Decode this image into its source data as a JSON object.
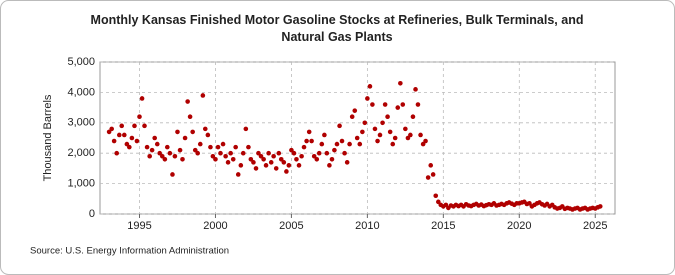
{
  "chart_data": {
    "type": "scatter",
    "title": "Monthly Kansas Finished Motor Gasoline Stocks at Refineries, Bulk Terminals, and Natural Gas Plants",
    "y_label": "Thousand Barrels",
    "source": "Source: U.S. Energy Information Administration",
    "color": "#b00000",
    "grid": true,
    "xlim": [
      1992.4,
      2026.3
    ],
    "xticks": [
      1995,
      2000,
      2005,
      2010,
      2015,
      2020,
      2025
    ],
    "ylim": [
      0,
      5000
    ],
    "yticks": [
      0,
      {
        "value": 1000,
        "label": "1,000"
      },
      {
        "value": 2000,
        "label": "2,000"
      },
      {
        "value": 3000,
        "label": "3,000"
      },
      {
        "value": 4000,
        "label": "4,000"
      },
      {
        "value": 5000,
        "label": "5,000"
      }
    ],
    "x": [
      1993,
      1993.17,
      1993.33,
      1993.5,
      1993.67,
      1993.83,
      1994,
      1994.17,
      1994.33,
      1994.5,
      1994.67,
      1994.83,
      1995,
      1995.17,
      1995.33,
      1995.5,
      1995.67,
      1995.83,
      1996,
      1996.17,
      1996.33,
      1996.5,
      1996.67,
      1996.83,
      1997,
      1997.17,
      1997.33,
      1997.5,
      1997.67,
      1997.83,
      1998,
      1998.17,
      1998.33,
      1998.5,
      1998.67,
      1998.83,
      1999,
      1999.17,
      1999.33,
      1999.5,
      1999.67,
      1999.83,
      2000,
      2000.17,
      2000.33,
      2000.5,
      2000.67,
      2000.83,
      2001,
      2001.17,
      2001.33,
      2001.5,
      2001.67,
      2001.83,
      2002,
      2002.17,
      2002.33,
      2002.5,
      2002.67,
      2002.83,
      2003,
      2003.17,
      2003.33,
      2003.5,
      2003.67,
      2003.83,
      2004,
      2004.17,
      2004.33,
      2004.5,
      2004.67,
      2004.83,
      2005,
      2005.17,
      2005.33,
      2005.5,
      2005.67,
      2005.83,
      2006,
      2006.17,
      2006.33,
      2006.5,
      2006.67,
      2006.83,
      2007,
      2007.17,
      2007.33,
      2007.5,
      2007.67,
      2007.83,
      2008,
      2008.17,
      2008.33,
      2008.5,
      2008.67,
      2008.83,
      2009,
      2009.17,
      2009.33,
      2009.5,
      2009.67,
      2009.83,
      2010,
      2010.17,
      2010.33,
      2010.5,
      2010.67,
      2010.83,
      2011,
      2011.17,
      2011.33,
      2011.5,
      2011.67,
      2011.83,
      2012,
      2012.17,
      2012.33,
      2012.5,
      2012.67,
      2012.83,
      2013,
      2013.17,
      2013.33,
      2013.5,
      2013.67,
      2013.83,
      2014,
      2014.17,
      2014.33,
      2014.5,
      2014.67,
      2014.83,
      2015,
      2015.17,
      2015.33,
      2015.5,
      2015.67,
      2015.83,
      2016,
      2016.17,
      2016.33,
      2016.5,
      2016.67,
      2016.83,
      2017,
      2017.17,
      2017.33,
      2017.5,
      2017.67,
      2017.83,
      2018,
      2018.17,
      2018.33,
      2018.5,
      2018.67,
      2018.83,
      2019,
      2019.17,
      2019.33,
      2019.5,
      2019.67,
      2019.83,
      2020,
      2020.17,
      2020.33,
      2020.5,
      2020.67,
      2020.83,
      2021,
      2021.17,
      2021.33,
      2021.5,
      2021.67,
      2021.83,
      2022,
      2022.17,
      2022.33,
      2022.5,
      2022.67,
      2022.83,
      2023,
      2023.17,
      2023.33,
      2023.5,
      2023.67,
      2023.83,
      2024,
      2024.17,
      2024.33,
      2024.5,
      2024.67,
      2024.83,
      2025,
      2025.17,
      2025.33
    ],
    "values": [
      2700,
      2800,
      2400,
      2000,
      2600,
      2900,
      2600,
      2300,
      2200,
      2500,
      2900,
      2400,
      3200,
      3800,
      2900,
      2200,
      1900,
      2100,
      2500,
      2300,
      2000,
      1900,
      1800,
      2200,
      2000,
      1300,
      1900,
      2700,
      2100,
      1800,
      2500,
      3700,
      3200,
      2700,
      2100,
      2000,
      2300,
      3900,
      2800,
      2600,
      2200,
      1900,
      1800,
      2200,
      2000,
      2300,
      1900,
      1700,
      2000,
      1800,
      2200,
      1300,
      1600,
      2000,
      2800,
      2200,
      1800,
      1700,
      1500,
      2000,
      1900,
      1800,
      1600,
      2000,
      1700,
      1900,
      1500,
      2000,
      1800,
      1700,
      1400,
      1600,
      2100,
      2000,
      1800,
      1600,
      1900,
      2200,
      2400,
      2700,
      2400,
      1900,
      1800,
      2000,
      2300,
      2600,
      2000,
      1600,
      1800,
      2100,
      2300,
      2900,
      2400,
      2000,
      1700,
      2300,
      3200,
      3400,
      2500,
      2300,
      2700,
      3000,
      3800,
      4200,
      3600,
      2800,
      2400,
      2600,
      3000,
      3600,
      3200,
      2700,
      2300,
      2500,
      3500,
      4300,
      3600,
      2800,
      2500,
      2600,
      3200,
      4100,
      3600,
      2600,
      2300,
      2400,
      1200,
      1600,
      1300,
      600,
      400,
      300,
      250,
      300,
      200,
      280,
      250,
      300,
      260,
      300,
      250,
      320,
      280,
      260,
      300,
      330,
      280,
      310,
      260,
      290,
      320,
      300,
      350,
      280,
      300,
      330,
      300,
      350,
      380,
      340,
      300,
      350,
      350,
      380,
      400,
      330,
      350,
      250,
      300,
      350,
      380,
      320,
      280,
      330,
      250,
      300,
      220,
      180,
      200,
      250,
      170,
      200,
      180,
      150,
      180,
      200,
      150,
      180,
      200,
      150,
      180,
      200,
      180,
      220,
      250
    ]
  }
}
